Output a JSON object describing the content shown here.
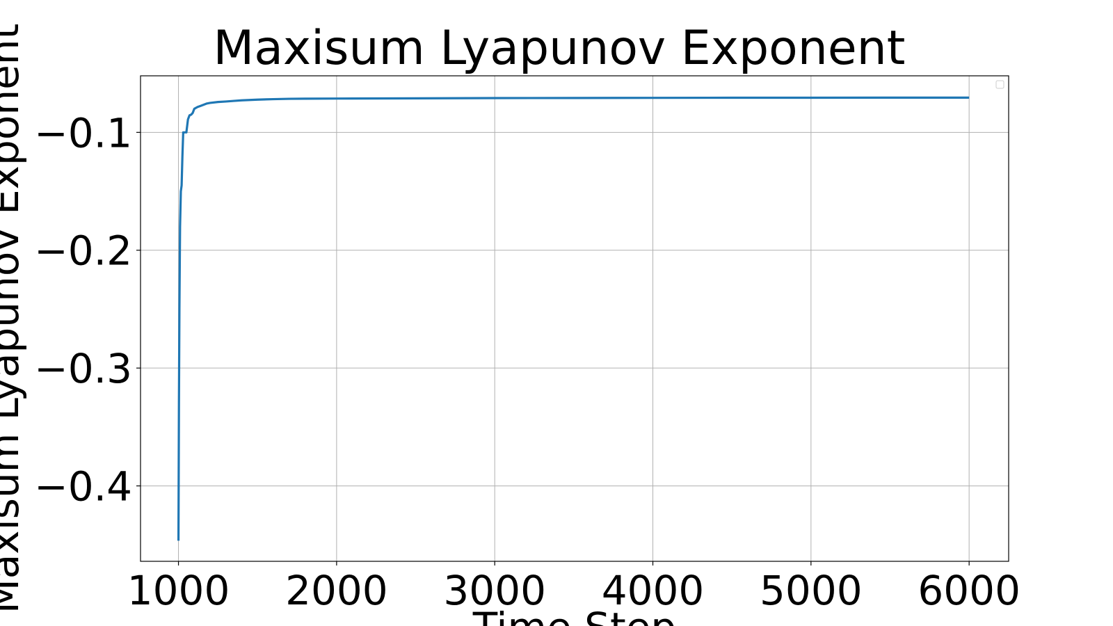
{
  "chart_data": {
    "type": "line",
    "title": "Maxisum Lyapunov Exponent",
    "xlabel": "Time Step",
    "ylabel": "Maxisum Lyapunov Exponent",
    "xlim": [
      760,
      6250
    ],
    "ylim": [
      -0.464,
      -0.052
    ],
    "xticks": [
      1000,
      2000,
      3000,
      4000,
      5000,
      6000
    ],
    "xtick_labels": [
      "1000",
      "2000",
      "3000",
      "4000",
      "5000",
      "6000"
    ],
    "yticks": [
      -0.1,
      -0.2,
      -0.3,
      -0.4
    ],
    "ytick_labels": [
      "−0.1",
      "−0.2",
      "−0.3",
      "−0.4"
    ],
    "grid": true,
    "legend": "top-right (empty)",
    "series": [
      {
        "color": "#1f77b4",
        "x": [
          1000,
          1003,
          1006,
          1010,
          1015,
          1020,
          1025,
          1030,
          1040,
          1050,
          1060,
          1070,
          1080,
          1090,
          1100,
          1120,
          1140,
          1160,
          1180,
          1200,
          1250,
          1300,
          1350,
          1400,
          1500,
          1600,
          1700,
          1800,
          2000,
          2500,
          3000,
          3500,
          4000,
          4500,
          5000,
          5500,
          6000
        ],
        "y": [
          -0.4465,
          -0.33,
          -0.25,
          -0.18,
          -0.15,
          -0.145,
          -0.12,
          -0.1,
          -0.1,
          -0.1,
          -0.089,
          -0.0855,
          -0.085,
          -0.0835,
          -0.08,
          -0.0785,
          -0.0775,
          -0.0765,
          -0.0755,
          -0.075,
          -0.0742,
          -0.0738,
          -0.0733,
          -0.0728,
          -0.0722,
          -0.0718,
          -0.0715,
          -0.0714,
          -0.0713,
          -0.0711,
          -0.0709,
          -0.0708,
          -0.0707,
          -0.0706,
          -0.0706,
          -0.0705,
          -0.0705
        ]
      }
    ]
  }
}
